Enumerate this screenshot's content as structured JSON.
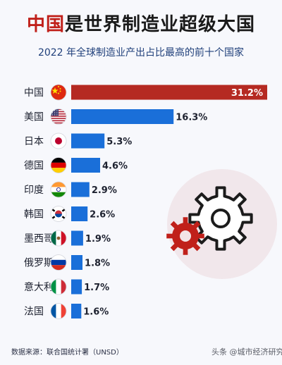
{
  "header": {
    "title_accent": "中国",
    "title_rest": "是世界制造业超级大国",
    "subtitle": "2022 年全球制造业产出占比最高的前十个国家"
  },
  "footer": {
    "source": "数据来源：联合国统计署（UNSD）",
    "watermark": "头条 @城市经济研究"
  },
  "colors": {
    "highlight": "#b52a22",
    "bar": "#1a6fd9"
  },
  "chart_data": {
    "type": "bar",
    "orientation": "horizontal",
    "categories": [
      "中国",
      "美国",
      "日本",
      "德国",
      "印度",
      "韩国",
      "墨西哥",
      "俄罗斯",
      "意大利",
      "法国"
    ],
    "values": [
      31.2,
      16.3,
      5.3,
      4.6,
      2.9,
      2.6,
      1.9,
      1.8,
      1.7,
      1.6
    ],
    "value_labels": [
      "31.2%",
      "16.3%",
      "5.3%",
      "4.6%",
      "2.9%",
      "2.6%",
      "1.9%",
      "1.8%",
      "1.7%",
      "1.6%"
    ],
    "flags": [
      "china-flag-icon",
      "usa-flag-icon",
      "japan-flag-icon",
      "germany-flag-icon",
      "india-flag-icon",
      "south-korea-flag-icon",
      "mexico-flag-icon",
      "russia-flag-icon",
      "italy-flag-icon",
      "france-flag-icon"
    ],
    "title": "2022 年全球制造业产出占比最高的前十个国家",
    "xlabel": "",
    "ylabel": "",
    "grid": false
  }
}
